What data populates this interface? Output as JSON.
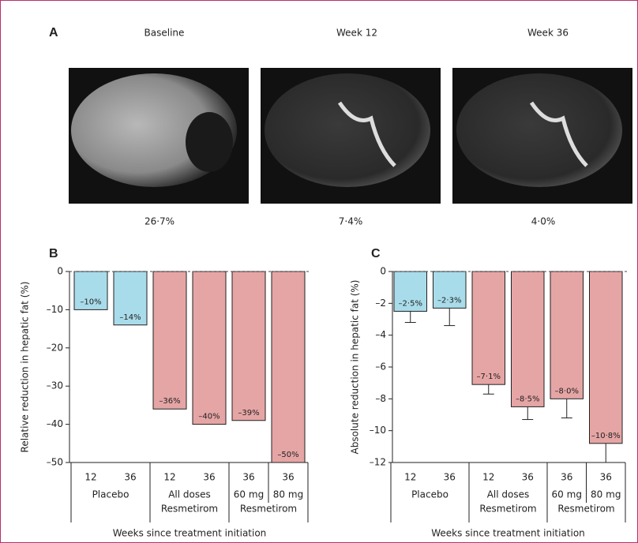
{
  "panel_labels": [
    "A",
    "B",
    "C"
  ],
  "images": [
    {
      "caption": "Baseline",
      "value": "26·7%"
    },
    {
      "caption": "Week 12",
      "value": "7·4%"
    },
    {
      "caption": "Week 36",
      "value": "4·0%"
    }
  ],
  "chart_data": [
    {
      "type": "bar",
      "ylabel": "Relative reduction in hepatic fat (%)",
      "xlabel": "Weeks since treatment initiation",
      "categories": [
        "12",
        "36",
        "12",
        "36",
        "36",
        "36"
      ],
      "values": [
        -10,
        -14,
        -36,
        -40,
        -39,
        -50
      ],
      "value_labels": [
        "–10%",
        "–14%",
        "–36%",
        "–40%",
        "–39%",
        "–50%"
      ],
      "colors": [
        "#a9dcea",
        "#a9dcea",
        "#e6a5a5",
        "#e6a5a5",
        "#e6a5a5",
        "#e6a5a5"
      ],
      "groups": [
        {
          "lines": [
            "Placebo"
          ],
          "n": 2
        },
        {
          "lines": [
            "All doses",
            "Resmetirom"
          ],
          "n": 2
        },
        {
          "subs": [
            "60 mg",
            "80 mg"
          ],
          "lines": [
            "Resmetirom"
          ],
          "n": 2
        }
      ],
      "ylim": [
        -50,
        0
      ],
      "yticks": [
        0,
        {
          "value": -10,
          "label": "–10"
        },
        {
          "value": -20,
          "label": "–20"
        },
        {
          "value": -30,
          "label": "–30"
        },
        {
          "value": -40,
          "label": "–40"
        },
        {
          "value": -50,
          "label": "–50"
        }
      ],
      "zero_line_dashed": true
    },
    {
      "type": "bar",
      "ylabel": "Absolute reduction in hepatic fat (%)",
      "xlabel": "Weeks since treatment initiation",
      "categories": [
        "12",
        "36",
        "12",
        "36",
        "36",
        "36"
      ],
      "values": [
        -2.5,
        -2.3,
        -7.1,
        -8.5,
        -8.0,
        -10.8
      ],
      "errors": [
        0.7,
        1.1,
        0.6,
        0.8,
        1.2,
        1.2
      ],
      "value_labels": [
        "–2·5%",
        "–2·3%",
        "–7·1%",
        "–8·5%",
        "–8·0%",
        "–10·8%"
      ],
      "colors": [
        "#a9dcea",
        "#a9dcea",
        "#e6a5a5",
        "#e6a5a5",
        "#e6a5a5",
        "#e6a5a5"
      ],
      "groups": [
        {
          "lines": [
            "Placebo"
          ],
          "n": 2
        },
        {
          "lines": [
            "All doses",
            "Resmetirom"
          ],
          "n": 2
        },
        {
          "subs": [
            "60 mg",
            "80 mg"
          ],
          "lines": [
            "Resmetirom"
          ],
          "n": 2
        }
      ],
      "ylim": [
        -12,
        0
      ],
      "yticks": [
        0,
        {
          "value": -2,
          "label": "–2"
        },
        {
          "value": -4,
          "label": "–4"
        },
        {
          "value": -6,
          "label": "–6"
        },
        {
          "value": -8,
          "label": "–8"
        },
        {
          "value": -10,
          "label": "–10"
        },
        {
          "value": -12,
          "label": "–12"
        }
      ],
      "zero_line_dashed": true
    }
  ]
}
